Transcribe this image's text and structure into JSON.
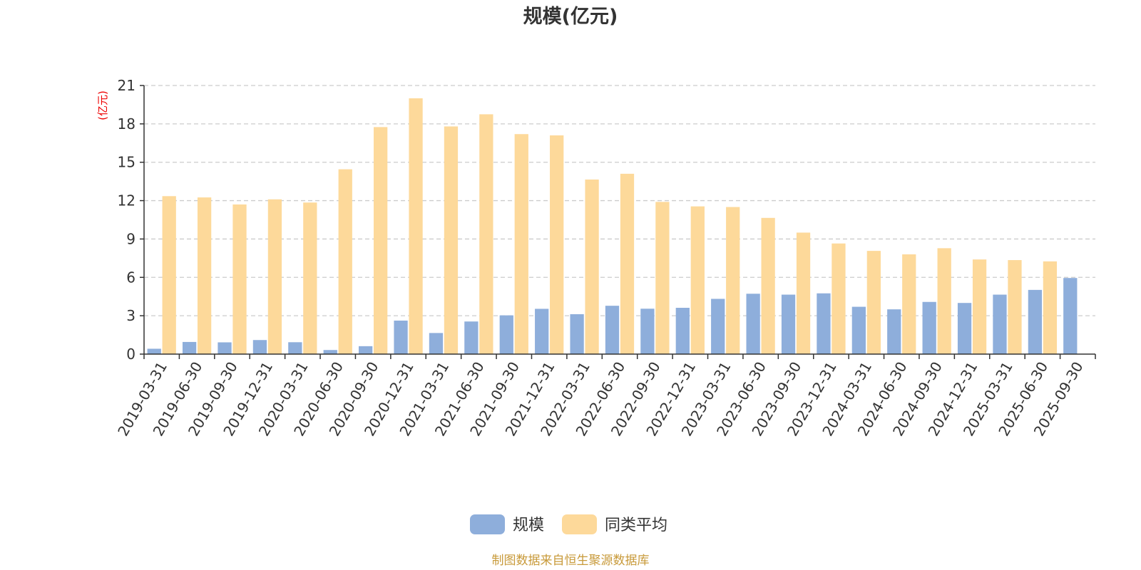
{
  "chart_data": {
    "type": "bar",
    "title": "规模(亿元)",
    "ylabel": "(亿元)",
    "xlabel": "",
    "ylim": [
      0,
      21
    ],
    "yticks": [
      0,
      3,
      6,
      9,
      12,
      15,
      18,
      21
    ],
    "grid": true,
    "legend_position": "bottom",
    "categories": [
      "2019-03-31",
      "2019-06-30",
      "2019-09-30",
      "2019-12-31",
      "2020-03-31",
      "2020-06-30",
      "2020-09-30",
      "2020-12-31",
      "2021-03-31",
      "2021-06-30",
      "2021-09-30",
      "2021-12-31",
      "2022-03-31",
      "2022-06-30",
      "2022-09-30",
      "2022-12-31",
      "2023-03-31",
      "2023-06-30",
      "2023-09-30",
      "2023-12-31",
      "2024-03-31",
      "2024-06-30",
      "2024-09-30",
      "2024-12-31",
      "2025-03-31",
      "2025-06-30",
      "2025-09-30"
    ],
    "series": [
      {
        "name": "规模",
        "color": "#8eaedb",
        "values": [
          0.42,
          0.95,
          0.92,
          1.1,
          0.93,
          0.32,
          0.62,
          2.62,
          1.65,
          2.55,
          3.03,
          3.54,
          3.12,
          3.78,
          3.55,
          3.62,
          4.32,
          4.72,
          4.65,
          4.75,
          3.7,
          3.5,
          4.08,
          4.0,
          4.65,
          5.02,
          5.95
        ]
      },
      {
        "name": "同类平均",
        "color": "#fdd99a",
        "values": [
          12.35,
          12.25,
          11.7,
          12.1,
          11.85,
          14.45,
          17.75,
          20.0,
          17.8,
          18.75,
          17.2,
          17.1,
          13.65,
          14.1,
          11.9,
          11.55,
          11.5,
          10.65,
          9.5,
          8.65,
          8.07,
          7.8,
          8.28,
          7.4,
          7.35,
          7.25,
          null
        ]
      }
    ],
    "source": "制图数据来自恒生聚源数据库"
  }
}
